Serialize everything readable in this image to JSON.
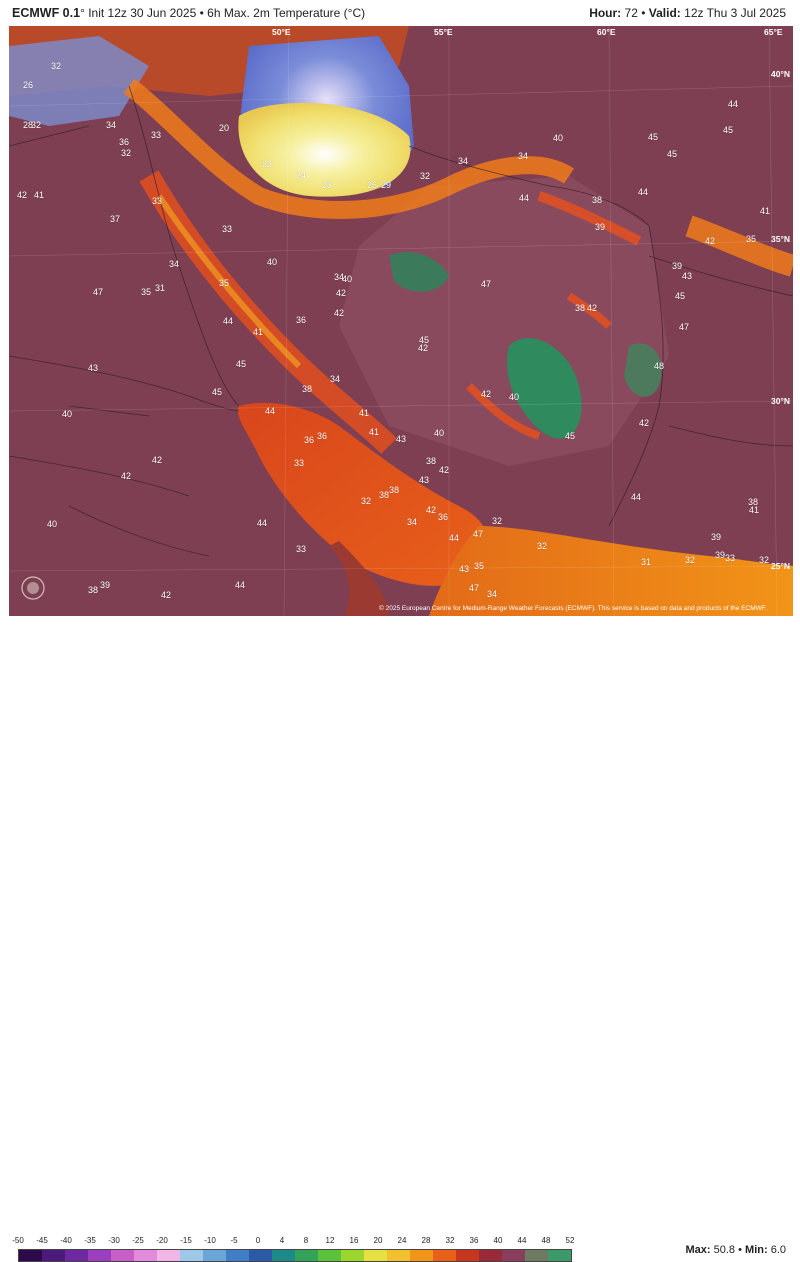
{
  "header": {
    "model": "ECMWF 0.1",
    "init": "° Init 12z 30 Jun 2025 • 6h Max. 2m Temperature (°C)",
    "hour_label": "Hour:",
    "hour_value": "72",
    "sep": "•",
    "valid_label": "Valid:",
    "valid_value": "12z Thu 3 Jul 2025"
  },
  "coords": [
    "50°E",
    "55°E",
    "60°E",
    "65°E",
    "40°N",
    "35°N",
    "30°N",
    "25°N"
  ],
  "temps": [
    "26",
    "32",
    "32",
    "28",
    "34",
    "33",
    "32",
    "20",
    "42",
    "41",
    "37",
    "33",
    "36",
    "34",
    "35",
    "33",
    "35",
    "31",
    "40",
    "36",
    "44",
    "41",
    "34",
    "38",
    "42",
    "45",
    "45",
    "43",
    "47",
    "40",
    "42",
    "42",
    "44",
    "40",
    "44",
    "42",
    "38",
    "39",
    "33",
    "36",
    "45",
    "42",
    "43",
    "34",
    "41",
    "23",
    "24",
    "23",
    "26",
    "29",
    "32",
    "34",
    "34",
    "40",
    "45",
    "44",
    "45",
    "45",
    "44",
    "41",
    "42",
    "35",
    "38",
    "39",
    "39",
    "43",
    "42",
    "38",
    "47",
    "40",
    "44",
    "42",
    "41",
    "47",
    "45",
    "48",
    "42",
    "45",
    "42",
    "40",
    "39",
    "41",
    "38",
    "32",
    "43",
    "34",
    "36",
    "32",
    "35",
    "34",
    "32",
    "33",
    "36",
    "44",
    "38",
    "38",
    "31",
    "32",
    "33",
    "32",
    "39",
    "38",
    "44",
    "42",
    "40",
    "42",
    "44",
    "47",
    "43",
    "47"
  ],
  "credit": "© 2025 European Centre for Medium-Range Weather Forecasts (ECMWF). This service is based on data and products of the ECMWF.",
  "logo_text": "WEATHERBELL",
  "scale": {
    "labels": [
      "-50",
      "-45",
      "-40",
      "-35",
      "-30",
      "-25",
      "-20",
      "-15",
      "-10",
      "-5",
      "0",
      "4",
      "8",
      "12",
      "16",
      "20",
      "24",
      "28",
      "32",
      "36",
      "40",
      "44",
      "48",
      "52"
    ],
    "colors": [
      "#2d0a4a",
      "#4b1a7a",
      "#6d2aa0",
      "#9c3fbf",
      "#c85ec8",
      "#e48adc",
      "#f2b6e6",
      "#9ec8e8",
      "#6aa6d8",
      "#3f7fc6",
      "#2a5aa8",
      "#1d8a8a",
      "#33a35a",
      "#5cc23a",
      "#9bd62e",
      "#e6e040",
      "#f2c02c",
      "#f29418",
      "#e8601a",
      "#c8361e",
      "#9a2a38",
      "#8a3e5c",
      "#6e7a62",
      "#3a9a6a"
    ]
  },
  "stats": {
    "max_label": "Max:",
    "max_value": "50.8",
    "sep": "•",
    "min_label": "Min:",
    "min_value": "6.0"
  }
}
